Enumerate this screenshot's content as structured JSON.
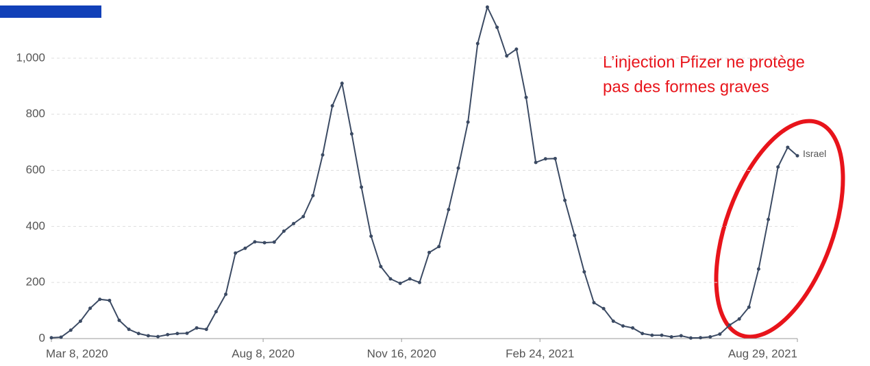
{
  "chart_data": {
    "type": "line",
    "annotation": [
      "L’injection Pfizer ne protège",
      "pas des formes graves"
    ],
    "x": [
      "2020-03-08",
      "2020-03-15",
      "2020-03-22",
      "2020-03-29",
      "2020-04-05",
      "2020-04-12",
      "2020-04-19",
      "2020-04-26",
      "2020-05-03",
      "2020-05-10",
      "2020-05-17",
      "2020-05-24",
      "2020-05-31",
      "2020-06-07",
      "2020-06-14",
      "2020-06-21",
      "2020-06-28",
      "2020-07-05",
      "2020-07-12",
      "2020-07-19",
      "2020-07-26",
      "2020-08-02",
      "2020-08-09",
      "2020-08-16",
      "2020-08-23",
      "2020-08-30",
      "2020-09-06",
      "2020-09-13",
      "2020-09-20",
      "2020-09-27",
      "2020-10-04",
      "2020-10-11",
      "2020-10-18",
      "2020-10-25",
      "2020-11-01",
      "2020-11-08",
      "2020-11-15",
      "2020-11-22",
      "2020-11-29",
      "2020-12-06",
      "2020-12-13",
      "2020-12-20",
      "2020-12-27",
      "2021-01-03",
      "2021-01-10",
      "2021-01-17",
      "2021-01-24",
      "2021-01-31",
      "2021-02-07",
      "2021-02-14",
      "2021-02-21",
      "2021-02-28",
      "2021-03-07",
      "2021-03-14",
      "2021-03-21",
      "2021-03-28",
      "2021-04-04",
      "2021-04-11",
      "2021-04-18",
      "2021-04-25",
      "2021-05-02",
      "2021-05-09",
      "2021-05-16",
      "2021-05-23",
      "2021-05-30",
      "2021-06-06",
      "2021-06-13",
      "2021-06-20",
      "2021-06-27",
      "2021-07-04",
      "2021-07-11",
      "2021-07-18",
      "2021-07-25",
      "2021-08-01",
      "2021-08-08",
      "2021-08-15",
      "2021-08-22",
      "2021-08-29"
    ],
    "series": [
      {
        "name": "Israel",
        "color": "#3b4a63",
        "values": [
          3,
          5,
          30,
          62,
          108,
          140,
          136,
          65,
          33,
          18,
          10,
          7,
          14,
          18,
          19,
          38,
          33,
          96,
          158,
          305,
          322,
          345,
          342,
          344,
          383,
          410,
          435,
          510,
          655,
          830,
          910,
          730,
          540,
          365,
          257,
          213,
          197,
          213,
          200,
          307,
          328,
          460,
          608,
          772,
          1052,
          1182,
          1110,
          1008,
          1032,
          860,
          628,
          641,
          642,
          493,
          368,
          238,
          128,
          107,
          62,
          45,
          38,
          18,
          12,
          12,
          6,
          10,
          2,
          3,
          6,
          16,
          48,
          70,
          112,
          248,
          425,
          612,
          682,
          652
        ]
      }
    ],
    "xlim": [
      "2020-03-08",
      "2021-08-29"
    ],
    "xticks": [
      {
        "value": "2020-03-08",
        "label": "Mar 8, 2020"
      },
      {
        "value": "2020-08-08",
        "label": "Aug 8, 2020"
      },
      {
        "value": "2020-11-16",
        "label": "Nov 16, 2020"
      },
      {
        "value": "2021-02-24",
        "label": "Feb 24, 2021"
      },
      {
        "value": "2021-08-29",
        "label": "Aug 29, 2021"
      }
    ],
    "ylim": [
      0,
      1200
    ],
    "yticks": [
      0,
      200,
      400,
      600,
      800,
      {
        "value": 1000,
        "label": "1,000"
      }
    ],
    "grid": true
  }
}
